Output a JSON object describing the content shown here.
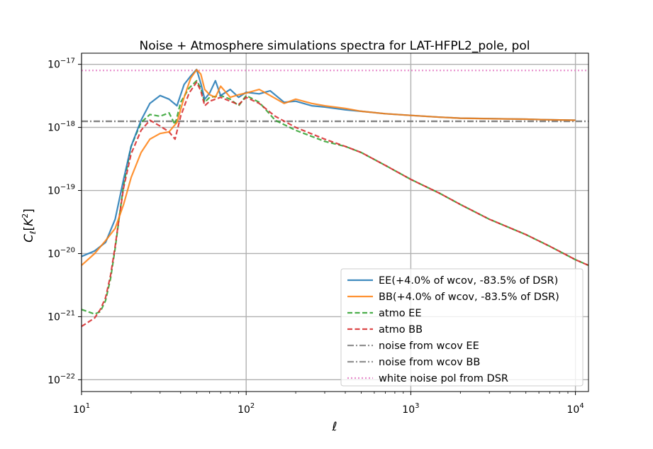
{
  "chart_data": {
    "type": "line",
    "title": "Noise + Atmosphere simulations spectra for LAT-HFPL2_pole, pol",
    "xlabel": "ℓ",
    "ylabel": "C_ℓ[K²]",
    "xscale": "log",
    "yscale": "log",
    "xlim": [
      10,
      12000
    ],
    "ylim": [
      6.5e-23,
      1.5e-17
    ],
    "grid": true,
    "legend_position": "lower-right",
    "x_ticks": [
      {
        "value": 10,
        "base": "10",
        "exp": "1"
      },
      {
        "value": 100,
        "base": "10",
        "exp": "2"
      },
      {
        "value": 1000,
        "base": "10",
        "exp": "3"
      },
      {
        "value": 10000,
        "base": "10",
        "exp": "4"
      }
    ],
    "y_ticks": [
      {
        "value": 1e-17,
        "base": "10",
        "exp": "−17"
      },
      {
        "value": 1e-18,
        "base": "10",
        "exp": "−18"
      },
      {
        "value": 1e-19,
        "base": "10",
        "exp": "−19"
      },
      {
        "value": 1e-20,
        "base": "10",
        "exp": "−20"
      },
      {
        "value": 1e-21,
        "base": "10",
        "exp": "−21"
      },
      {
        "value": 1e-22,
        "base": "10",
        "exp": "−22"
      }
    ],
    "series": [
      {
        "name": "EE(+4.0% of wcov, -83.5% of DSR)",
        "color": "#1f77b4",
        "style": "solid",
        "x": [
          10,
          12,
          14,
          16,
          18,
          20,
          23,
          26,
          30,
          34,
          38,
          42,
          46,
          50,
          53,
          56,
          60,
          65,
          70,
          80,
          90,
          100,
          120,
          140,
          170,
          200,
          250,
          300,
          400,
          500,
          700,
          1000,
          1500,
          2000,
          3000,
          5000,
          7000,
          10000
        ],
        "y": [
          9e-21,
          1.1e-20,
          1.5e-20,
          3.5e-20,
          1.5e-19,
          5e-19,
          1.3e-18,
          2.4e-18,
          3.2e-18,
          2.8e-18,
          2.2e-18,
          4.8e-18,
          6.5e-18,
          8.3e-18,
          5e-18,
          2.8e-18,
          3.5e-18,
          5.5e-18,
          3.2e-18,
          4e-18,
          3e-18,
          3.6e-18,
          3.4e-18,
          3.8e-18,
          2.5e-18,
          2.6e-18,
          2.2e-18,
          2.1e-18,
          1.9e-18,
          1.8e-18,
          1.65e-18,
          1.55e-18,
          1.45e-18,
          1.4e-18,
          1.38e-18,
          1.35e-18,
          1.32e-18,
          1.3e-18
        ]
      },
      {
        "name": "BB(+4.0% of wcov, -83.5% of DSR)",
        "color": "#ff7f0e",
        "style": "solid",
        "x": [
          10,
          12,
          14,
          16,
          18,
          20,
          23,
          26,
          30,
          34,
          38,
          42,
          46,
          50,
          53,
          56,
          60,
          65,
          70,
          80,
          90,
          100,
          120,
          140,
          170,
          200,
          250,
          300,
          400,
          500,
          700,
          1000,
          1500,
          2000,
          3000,
          5000,
          7000,
          10000
        ],
        "y": [
          6.5e-21,
          1e-20,
          1.6e-20,
          2.5e-20,
          6e-20,
          1.6e-19,
          4e-19,
          6.5e-19,
          8e-19,
          8.5e-19,
          1.2e-18,
          3e-18,
          6e-18,
          8.2e-18,
          7e-18,
          4e-18,
          3.3e-18,
          3e-18,
          4.5e-18,
          3e-18,
          3.3e-18,
          3.5e-18,
          4e-18,
          3.2e-18,
          2.4e-18,
          2.8e-18,
          2.4e-18,
          2.2e-18,
          2e-18,
          1.8e-18,
          1.65e-18,
          1.55e-18,
          1.45e-18,
          1.4e-18,
          1.37e-18,
          1.35e-18,
          1.32e-18,
          1.3e-18
        ]
      },
      {
        "name": "atmo EE",
        "color": "#2ca02c",
        "style": "dashed",
        "x": [
          10,
          12,
          13,
          14,
          15,
          16,
          17,
          18,
          20,
          23,
          26,
          30,
          34,
          37,
          40,
          45,
          50,
          53,
          56,
          60,
          70,
          80,
          90,
          100,
          120,
          150,
          200,
          300,
          400,
          500,
          700,
          1000,
          1500,
          2000,
          3000,
          5000,
          7000,
          10000,
          12000
        ],
        "y": [
          1.3e-21,
          1.1e-21,
          1.2e-21,
          1.8e-21,
          4e-21,
          1.2e-20,
          4e-20,
          1.2e-19,
          5e-19,
          1.2e-18,
          1.6e-18,
          1.5e-18,
          1.7e-18,
          1.1e-18,
          2.5e-18,
          4.2e-18,
          5.5e-18,
          4.2e-18,
          2.5e-18,
          3e-18,
          3.2e-18,
          2.8e-18,
          2.2e-18,
          3.2e-18,
          2.5e-18,
          1.3e-18,
          9e-19,
          6e-19,
          5e-19,
          4e-19,
          2.5e-19,
          1.5e-19,
          9e-20,
          6e-20,
          3.5e-20,
          2e-20,
          1.3e-20,
          8e-21,
          6.5e-21
        ]
      },
      {
        "name": "atmo BB",
        "color": "#d62728",
        "style": "dashed",
        "x": [
          10,
          12,
          13,
          14,
          15,
          16,
          17,
          18,
          20,
          23,
          26,
          30,
          34,
          37,
          40,
          45,
          50,
          53,
          56,
          60,
          70,
          80,
          90,
          100,
          120,
          150,
          200,
          300,
          400,
          500,
          700,
          1000,
          1500,
          2000,
          3000,
          5000,
          7000,
          10000,
          12000
        ],
        "y": [
          7e-22,
          9.5e-22,
          1.3e-21,
          2e-21,
          4.5e-21,
          1.3e-20,
          4e-20,
          1.1e-19,
          3.8e-19,
          9e-19,
          1.3e-18,
          1.05e-18,
          8.5e-19,
          6.5e-19,
          1.5e-18,
          3.5e-18,
          5.2e-18,
          3.8e-18,
          2.2e-18,
          2.6e-18,
          3e-18,
          2.6e-18,
          2.3e-18,
          3e-18,
          2.4e-18,
          1.5e-18,
          1e-18,
          6.5e-19,
          5e-19,
          4e-19,
          2.5e-19,
          1.5e-19,
          9e-20,
          6e-20,
          3.5e-20,
          2e-20,
          1.3e-20,
          8e-21,
          6.5e-21
        ]
      },
      {
        "name": "noise from wcov EE",
        "color": "#7f7f7f",
        "style": "dashdot",
        "x": [
          10,
          12000
        ],
        "y": [
          1.25e-18,
          1.25e-18
        ]
      },
      {
        "name": "noise from wcov BB",
        "color": "#7f7f7f",
        "style": "dashdot",
        "x": [
          10,
          12000
        ],
        "y": [
          1.25e-18,
          1.25e-18
        ]
      },
      {
        "name": "white noise pol from DSR",
        "color": "#e377c2",
        "style": "dotted",
        "x": [
          10,
          12000
        ],
        "y": [
          8e-18,
          8e-18
        ]
      }
    ]
  }
}
